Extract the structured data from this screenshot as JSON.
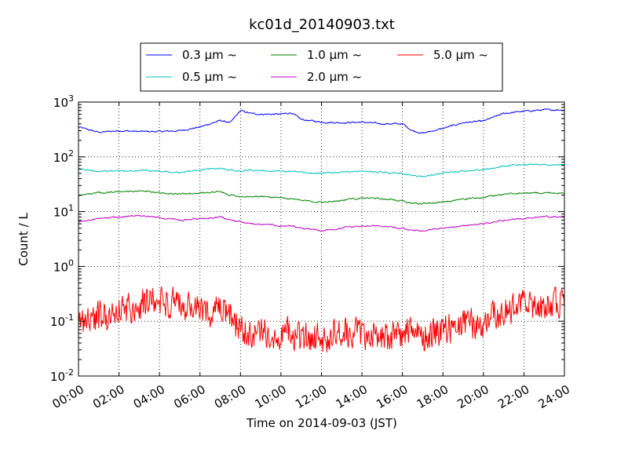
{
  "chart_data": {
    "type": "line",
    "title": "kc01d_20140903.txt",
    "xlabel": "Time on 2014-09-03 (JST)",
    "ylabel": "Count / L",
    "x_ticks": [
      "00:00",
      "02:00",
      "04:00",
      "06:00",
      "08:00",
      "10:00",
      "12:00",
      "14:00",
      "16:00",
      "18:00",
      "20:00",
      "22:00",
      "24:00"
    ],
    "y_ticks": [
      {
        "value": 0.01,
        "base": "10",
        "exp": "-2"
      },
      {
        "value": 0.1,
        "base": "10",
        "exp": "-1"
      },
      {
        "value": 1,
        "base": "10",
        "exp": "0"
      },
      {
        "value": 10,
        "base": "10",
        "exp": "1"
      },
      {
        "value": 100,
        "base": "10",
        "exp": "2"
      },
      {
        "value": 1000,
        "base": "10",
        "exp": "3"
      }
    ],
    "x_range_hours": [
      0,
      24
    ],
    "ylim": [
      0.01,
      1000
    ],
    "y_scale": "log",
    "grid": true,
    "legend_location": "top-center, above plot",
    "x_hours": [
      0,
      1,
      2,
      3,
      4,
      5,
      6,
      7,
      7.5,
      8,
      8.5,
      9,
      10,
      10.5,
      11,
      12,
      13,
      14,
      15,
      16,
      16.5,
      17,
      18,
      19,
      20,
      21,
      22,
      23,
      24
    ],
    "series": [
      {
        "name": "0.3 μm ~",
        "color": "#0000ff",
        "values": [
          350,
          280,
          300,
          290,
          290,
          300,
          350,
          460,
          420,
          700,
          620,
          600,
          600,
          640,
          480,
          430,
          420,
          430,
          400,
          400,
          300,
          270,
          330,
          420,
          450,
          620,
          680,
          720,
          720
        ]
      },
      {
        "name": "0.5 μm ~",
        "color": "#00bfbf",
        "values": [
          60,
          55,
          55,
          56,
          55,
          52,
          58,
          62,
          58,
          55,
          58,
          55,
          55,
          54,
          52,
          50,
          52,
          55,
          52,
          50,
          45,
          44,
          50,
          55,
          58,
          68,
          72,
          72,
          72
        ]
      },
      {
        "name": "1.0 μm ~",
        "color": "#008000",
        "values": [
          20,
          22,
          23,
          24,
          22,
          21,
          22,
          23,
          20,
          19,
          19,
          19,
          18,
          17,
          16,
          15,
          16,
          18,
          17,
          16,
          14,
          14,
          15,
          17,
          18,
          21,
          22,
          22,
          22
        ]
      },
      {
        "name": "2.0 μm ~",
        "color": "#bf00bf",
        "values": [
          6.5,
          7.5,
          8,
          8.5,
          8,
          7,
          7.5,
          8,
          7,
          6.5,
          6,
          6,
          5.5,
          5.5,
          5,
          4.5,
          5,
          5.5,
          5.5,
          5,
          4.5,
          4.5,
          5,
          5.5,
          6,
          7,
          7.5,
          8,
          8
        ]
      },
      {
        "name": "5.0 μm ~",
        "color": "#ff0000",
        "values": [
          0.1,
          0.12,
          0.15,
          0.2,
          0.25,
          0.2,
          0.15,
          0.15,
          0.12,
          0.07,
          0.05,
          0.06,
          0.06,
          0.06,
          0.05,
          0.05,
          0.06,
          0.06,
          0.05,
          0.06,
          0.06,
          0.05,
          0.07,
          0.08,
          0.1,
          0.15,
          0.2,
          0.2,
          0.2
        ]
      }
    ]
  }
}
